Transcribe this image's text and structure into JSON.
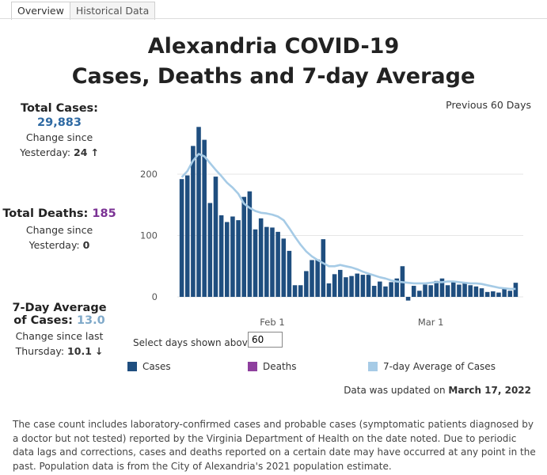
{
  "tabs": [
    {
      "label": "Overview"
    },
    {
      "label": "Historical Data"
    }
  ],
  "title_line1": "Alexandria COVID-19",
  "title_line2": "Cases, Deaths and 7-day Average",
  "total_cases": {
    "label": "Total Cases:",
    "value": "29,883",
    "change_line1": "Change since",
    "change_label": "Yesterday:",
    "change_value": "24",
    "arrow": "↑"
  },
  "total_deaths": {
    "label": "Total Deaths:",
    "value": "185",
    "change_line1": "Change since",
    "change_label": "Yesterday:",
    "change_value": "0"
  },
  "avg": {
    "label_line1": "7-Day Average",
    "label_line2": "of Cases:",
    "value": "13.0",
    "change_line1": "Change since last",
    "change_label": "Thursday:",
    "change_value": "10.1",
    "arrow": "↓"
  },
  "period_label": "Previous 60 Days",
  "selector": {
    "label": "Select days shown above:",
    "value": "60"
  },
  "legend": [
    {
      "label": "Cases",
      "color": "#1f4e7f"
    },
    {
      "label": "Deaths",
      "color": "#8e3f9e"
    },
    {
      "label": "7-day Average of Cases",
      "color": "#a6cbe6"
    }
  ],
  "updated": {
    "prefix": "Data was updated on ",
    "date": "March 17, 2022"
  },
  "footnote": "The case count includes laboratory-confirmed cases and probable cases (symptomatic patients diagnosed by a doctor but not tested) reported by the Virginia Department of Health on the date noted. Due to periodic data lags and  corrections, cases and deaths reported on a certain date may have occurred at any point in the past. Population data is from the City of Alexandria's 2021 population estimate.",
  "chart_data": {
    "type": "bar",
    "x_start": "2022-01-16",
    "x_ticks": [
      {
        "date": "2022-02-01",
        "label": "Feb 1"
      },
      {
        "date": "2022-03-01",
        "label": "Mar 1"
      }
    ],
    "y_ticks": [
      0,
      100,
      200
    ],
    "ylim": [
      -10,
      280
    ],
    "grid": true,
    "series": [
      {
        "name": "Cases",
        "color": "#1f4e7f",
        "values": [
          192,
          198,
          246,
          277,
          256,
          153,
          196,
          133,
          122,
          131,
          125,
          163,
          172,
          110,
          128,
          114,
          113,
          106,
          95,
          75,
          19,
          19,
          42,
          60,
          61,
          94,
          22,
          37,
          44,
          32,
          34,
          38,
          36,
          36,
          18,
          25,
          17,
          24,
          30,
          50,
          -6,
          18,
          10,
          20,
          19,
          26,
          30,
          19,
          24,
          20,
          24,
          19,
          17,
          14,
          8,
          9,
          7,
          13,
          10,
          23
        ]
      },
      {
        "name": "Deaths",
        "color": "#8e3f9e",
        "values": [
          0,
          0,
          0,
          0,
          0,
          0,
          0,
          0,
          0,
          0,
          0,
          0,
          0,
          0,
          0,
          0,
          0,
          0,
          0,
          0,
          0,
          0,
          0,
          0,
          0,
          0,
          0,
          0,
          0,
          0,
          0,
          0,
          0,
          0,
          0,
          0,
          0,
          0,
          0,
          0,
          0,
          0,
          0,
          0,
          0,
          0,
          0,
          0,
          0,
          0,
          0,
          0,
          0,
          0,
          0,
          0,
          0,
          0,
          0,
          0
        ]
      },
      {
        "name": "7-day Average of Cases",
        "color": "#a6cbe6",
        "values": [
          195,
          205,
          222,
          233,
          229,
          218,
          207,
          197,
          186,
          178,
          168,
          152,
          145,
          140,
          137,
          136,
          134,
          131,
          125,
          112,
          98,
          85,
          74,
          66,
          60,
          55,
          50,
          50,
          52,
          50,
          48,
          45,
          41,
          38,
          35,
          32,
          30,
          27,
          25,
          24,
          23,
          22,
          22,
          22,
          23,
          24,
          24,
          25,
          25,
          24,
          23,
          22,
          22,
          21,
          19,
          17,
          15,
          14,
          13,
          13
        ]
      }
    ]
  }
}
